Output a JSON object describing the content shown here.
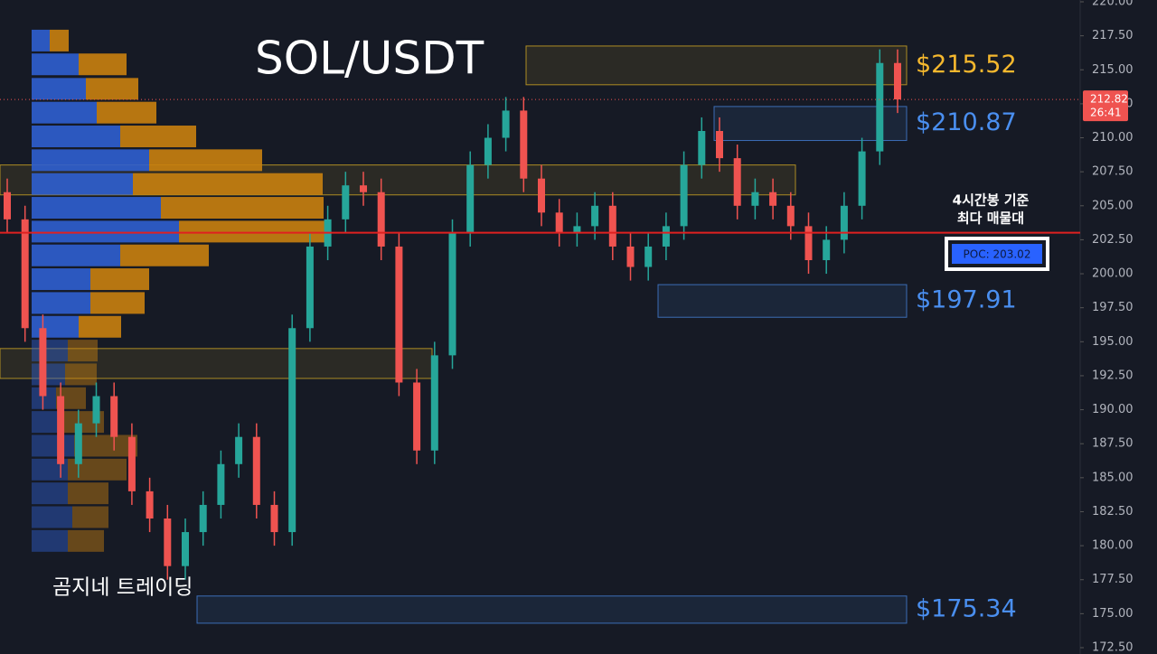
{
  "chart_data": {
    "type": "candlestick",
    "title": "SOL/USDT",
    "open": [
      206,
      204,
      196,
      191,
      186,
      189,
      191,
      188,
      184,
      182,
      178.5,
      181,
      183,
      186,
      188,
      183,
      181,
      196,
      202,
      204,
      206.5,
      206,
      202,
      192,
      187,
      194,
      203,
      208,
      210,
      212,
      207,
      204.5,
      203,
      203.5,
      205,
      202,
      200.5,
      202,
      203.5,
      208,
      210.5,
      208.5,
      205,
      206,
      205,
      203.5,
      201,
      202.5,
      205,
      209,
      215.5
    ],
    "high": [
      207,
      205,
      197,
      192,
      190,
      192,
      192,
      189,
      185,
      183,
      182,
      184,
      187,
      189,
      189,
      184,
      197,
      203,
      205,
      207.5,
      207.5,
      207,
      203,
      193,
      195,
      204,
      209,
      211,
      213,
      213,
      208,
      205.5,
      204.5,
      206,
      206,
      203,
      203,
      204.5,
      209,
      211.5,
      211.5,
      209.5,
      207,
      207,
      206,
      204.5,
      203.5,
      206,
      210,
      216.5,
      216.5
    ],
    "low": [
      203,
      195,
      190,
      185,
      185,
      188,
      187,
      183,
      181,
      177.5,
      177.5,
      180,
      182,
      185,
      182,
      180,
      180,
      195,
      201,
      203,
      205,
      201,
      191,
      186,
      186,
      193,
      202,
      207,
      209,
      206,
      203.5,
      202,
      202,
      202.5,
      201,
      199.5,
      199.5,
      201,
      202.5,
      207,
      207.5,
      204,
      204,
      204,
      202.5,
      200,
      200,
      201.5,
      204,
      208,
      211.82
    ],
    "close": [
      204,
      196,
      191,
      186,
      189,
      191,
      188,
      184,
      182,
      178.5,
      181,
      183,
      186,
      188,
      183,
      181,
      196,
      202,
      204,
      206.5,
      206,
      202,
      192,
      187,
      194,
      203,
      208,
      210,
      212,
      207,
      204.5,
      203,
      203.5,
      205,
      202,
      200.5,
      202,
      203.5,
      208,
      210.5,
      208.5,
      205,
      206,
      205,
      203.5,
      201,
      202.5,
      205,
      209,
      215.5,
      212.82
    ],
    "up_color": "#26a69a",
    "down_color": "#ef5350",
    "ylim": [
      172.5,
      220
    ],
    "yticks": [
      {
        "value": 172.5,
        "label": "172.50"
      },
      {
        "value": 175,
        "label": "175.00"
      },
      {
        "value": 177.5,
        "label": "177.50"
      },
      {
        "value": 180,
        "label": "180.00"
      },
      {
        "value": 182.5,
        "label": "182.50"
      },
      {
        "value": 185,
        "label": "185.00"
      },
      {
        "value": 187.5,
        "label": "187.50"
      },
      {
        "value": 190,
        "label": "190.00"
      },
      {
        "value": 192.5,
        "label": "192.50"
      },
      {
        "value": 195,
        "label": "195.00"
      },
      {
        "value": 197.5,
        "label": "197.50"
      },
      {
        "value": 200,
        "label": "200.00"
      },
      {
        "value": 202.5,
        "label": "202.50"
      },
      {
        "value": 205,
        "label": "205.00"
      },
      {
        "value": 207.5,
        "label": "207.50"
      },
      {
        "value": 210,
        "label": "210.00"
      },
      {
        "value": 212.5,
        "label": "212.50"
      },
      {
        "value": 215,
        "label": "215.00"
      },
      {
        "value": 217.5,
        "label": "217.50"
      },
      {
        "value": 220,
        "label": "220.00"
      }
    ],
    "last_price": {
      "value": 212.82,
      "label": "212.82",
      "countdown": "26:41"
    },
    "poc": {
      "value": 203.02,
      "label": "POC: 203.02",
      "note": [
        "4시간봉 기준",
        "최다 매물대"
      ]
    },
    "zones": [
      {
        "top": 216.75,
        "bottom": 213.9,
        "color": "#e8b923",
        "label": "$215.52"
      },
      {
        "top": 212.3,
        "bottom": 209.8,
        "color": "#4a8ff0",
        "label": "$210.87"
      },
      {
        "top": 199.2,
        "bottom": 196.8,
        "color": "#4a8ff0",
        "label": "$197.91"
      },
      {
        "top": 176.3,
        "bottom": 174.3,
        "color": "#4a8ff0",
        "label": "$175.34"
      },
      {
        "top": 208,
        "bottom": 205.8,
        "color": "#e8b923"
      },
      {
        "top": 194.5,
        "bottom": 192.3,
        "color": "#e8b923"
      }
    ],
    "volume_profile": {
      "prices": [
        217.15,
        215.4,
        213.6,
        211.85,
        210.1,
        208.35,
        206.6,
        204.85,
        203.1,
        201.35,
        199.6,
        197.85,
        196.1,
        194.35,
        192.6,
        190.85,
        189.1,
        187.35,
        185.6,
        183.85,
        182.1,
        180.35
      ],
      "buy": [
        20,
        52,
        60,
        72,
        98,
        130,
        112,
        143,
        163,
        98,
        65,
        65,
        52,
        40,
        37,
        27,
        30,
        47,
        40,
        40,
        45,
        40
      ],
      "sell": [
        21,
        53,
        58,
        66,
        84,
        125,
        210,
        180,
        165,
        98,
        65,
        60,
        47,
        33,
        35,
        33,
        50,
        70,
        65,
        45,
        40,
        40
      ],
      "buy_color": "#2f5fd0",
      "sell_color": "#c9810f"
    },
    "watermark": "곰지네 트레이딩"
  }
}
